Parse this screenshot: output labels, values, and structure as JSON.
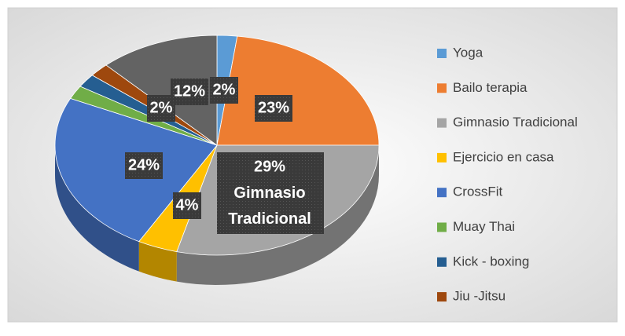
{
  "chart_data": {
    "type": "pie3d",
    "categories": [
      "Yoga",
      "Bailo terapia",
      "Gimnasio Tradicional",
      "Ejercicio en casa",
      "CrossFit",
      "Muay Thai",
      "Kick - boxing",
      "Jiu -Jitsu",
      null
    ],
    "values": [
      2,
      23,
      29,
      4,
      24,
      2,
      2,
      2,
      12
    ],
    "value_labels": [
      "2%",
      "23%",
      "29%",
      "4%",
      "24%",
      null,
      null,
      "2%",
      "12%"
    ],
    "colors": [
      "#5b9bd5",
      "#ed7d31",
      "#a5a5a5",
      "#ffc000",
      "#4472c4",
      "#70ad47",
      "#255e91",
      "#9e480e",
      "#636363"
    ],
    "legend": "right"
  }
}
